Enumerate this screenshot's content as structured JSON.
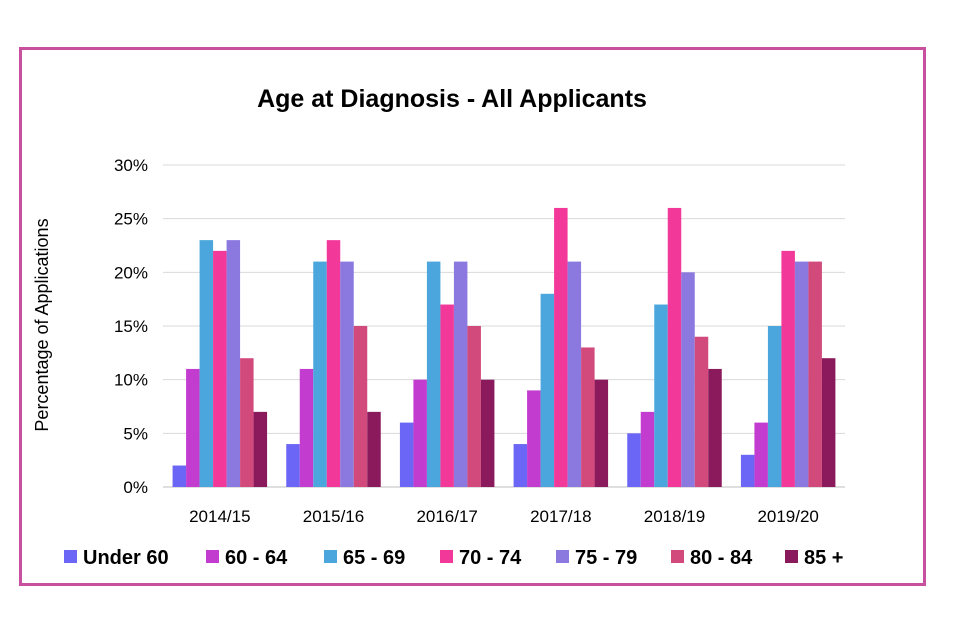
{
  "chart_data": {
    "type": "bar",
    "title": "Age at Diagnosis - All Applicants",
    "xlabel": "",
    "ylabel": "Percentage of Applications",
    "ylim": [
      0,
      30
    ],
    "yticks": [
      0,
      5,
      10,
      15,
      20,
      25,
      30
    ],
    "ytick_labels": [
      "0%",
      "5%",
      "10%",
      "15%",
      "20%",
      "25%",
      "30%"
    ],
    "grid": true,
    "legend_position": "bottom",
    "categories": [
      "2014/15",
      "2015/16",
      "2016/17",
      "2017/18",
      "2018/19",
      "2019/20"
    ],
    "series": [
      {
        "name": "Under 60",
        "color": "#6b66f5",
        "values": [
          2,
          4,
          6,
          4,
          5,
          3
        ]
      },
      {
        "name": "60 - 64",
        "color": "#c23ccf",
        "values": [
          11,
          11,
          10,
          9,
          7,
          6
        ]
      },
      {
        "name": "65 - 69",
        "color": "#4aa6dc",
        "values": [
          23,
          21,
          21,
          18,
          17,
          15
        ]
      },
      {
        "name": "70 - 74",
        "color": "#f2399a",
        "values": [
          22,
          23,
          17,
          26,
          26,
          22
        ]
      },
      {
        "name": "75 - 79",
        "color": "#8b79e0",
        "values": [
          23,
          21,
          21,
          21,
          20,
          21
        ]
      },
      {
        "name": "80 - 84",
        "color": "#d24a7c",
        "values": [
          12,
          15,
          15,
          13,
          14,
          21
        ]
      },
      {
        "name": "85 +",
        "color": "#8b1a5c",
        "values": [
          7,
          7,
          10,
          10,
          11,
          12
        ]
      }
    ]
  },
  "colors": {
    "frame_border": "#c9509e",
    "gridline": "#d9d9d9",
    "axis": "#bfbfbf"
  }
}
